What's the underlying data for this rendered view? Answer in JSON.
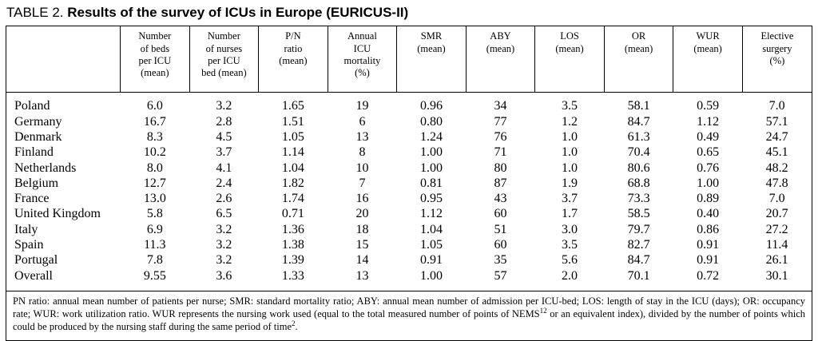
{
  "title": {
    "prefix": "TABLE 2.",
    "main": "Results of the survey of ICUs in Europe (EURICUS-II)"
  },
  "table": {
    "columns": [
      "",
      "Number\nof beds\nper ICU\n(mean)",
      "Number\nof nurses\nper ICU\nbed (mean)",
      "P/N\nratio\n(mean)",
      "Annual\nICU\nmortality\n(%)",
      "SMR\n(mean)",
      "ABY\n(mean)",
      "LOS\n(mean)",
      "OR\n(mean)",
      "WUR\n(mean)",
      "Elective\nsurgery\n(%)"
    ],
    "rows": [
      {
        "country": "Poland",
        "values": [
          "6.0",
          "3.2",
          "1.65",
          "19",
          "0.96",
          "34",
          "3.5",
          "58.1",
          "0.59",
          "7.0"
        ]
      },
      {
        "country": "Germany",
        "values": [
          "16.7",
          "2.8",
          "1.51",
          "6",
          "0.80",
          "77",
          "1.2",
          "84.7",
          "1.12",
          "57.1"
        ]
      },
      {
        "country": "Denmark",
        "values": [
          "8.3",
          "4.5",
          "1.05",
          "13",
          "1.24",
          "76",
          "1.0",
          "61.3",
          "0.49",
          "24.7"
        ]
      },
      {
        "country": "Finland",
        "values": [
          "10.2",
          "3.7",
          "1.14",
          "8",
          "1.00",
          "71",
          "1.0",
          "70.4",
          "0.65",
          "45.1"
        ]
      },
      {
        "country": "Netherlands",
        "values": [
          "8.0",
          "4.1",
          "1.04",
          "10",
          "1.00",
          "80",
          "1.0",
          "80.6",
          "0.76",
          "48.2"
        ]
      },
      {
        "country": "Belgium",
        "values": [
          "12.7",
          "2.4",
          "1.82",
          "7",
          "0.81",
          "87",
          "1.9",
          "68.8",
          "1.00",
          "47.8"
        ]
      },
      {
        "country": "France",
        "values": [
          "13.0",
          "2.6",
          "1.74",
          "16",
          "0.95",
          "43",
          "3.7",
          "73.3",
          "0.89",
          "7.0"
        ]
      },
      {
        "country": "United Kingdom",
        "values": [
          "5.8",
          "6.5",
          "0.71",
          "20",
          "1.12",
          "60",
          "1.7",
          "58.5",
          "0.40",
          "20.7"
        ]
      },
      {
        "country": "Italy",
        "values": [
          "6.9",
          "3.2",
          "1.36",
          "18",
          "1.04",
          "51",
          "3.0",
          "79.7",
          "0.86",
          "27.2"
        ]
      },
      {
        "country": "Spain",
        "values": [
          "11.3",
          "3.2",
          "1.38",
          "15",
          "1.05",
          "60",
          "3.5",
          "82.7",
          "0.91",
          "11.4"
        ]
      },
      {
        "country": "Portugal",
        "values": [
          "7.8",
          "3.2",
          "1.39",
          "14",
          "0.91",
          "35",
          "5.6",
          "84.7",
          "0.91",
          "26.1"
        ]
      },
      {
        "country": "Overall",
        "values": [
          "9.55",
          "3.6",
          "1.33",
          "13",
          "1.00",
          "57",
          "2.0",
          "70.1",
          "0.72",
          "30.1"
        ]
      }
    ]
  },
  "footnote": {
    "part1": "PN ratio: annual mean number of patients per nurse; SMR: standard mortality ratio; ABY: annual mean number of admission per ICU-bed; LOS: length of stay in the ICU (days); OR: occupancy rate; WUR: work utilization ratio. WUR represents the nursing work used (equal to the total measured number of points of NEMS",
    "sup1": "12",
    "part2": " or an equivalent index), divided by the number of points which could be produced by the nursing staff during the same period of time",
    "sup2": "2",
    "part3": "."
  },
  "chart_data": {
    "type": "table",
    "title": "TABLE 2. Results of the survey of ICUs in Europe (EURICUS-II)",
    "columns": [
      "Country",
      "Number of beds per ICU (mean)",
      "Number of nurses per ICU bed (mean)",
      "P/N ratio (mean)",
      "Annual ICU mortality (%)",
      "SMR (mean)",
      "ABY (mean)",
      "LOS (mean)",
      "OR (mean)",
      "WUR (mean)",
      "Elective surgery (%)"
    ],
    "rows": [
      [
        "Poland",
        6.0,
        3.2,
        1.65,
        19,
        0.96,
        34,
        3.5,
        58.1,
        0.59,
        7.0
      ],
      [
        "Germany",
        16.7,
        2.8,
        1.51,
        6,
        0.8,
        77,
        1.2,
        84.7,
        1.12,
        57.1
      ],
      [
        "Denmark",
        8.3,
        4.5,
        1.05,
        13,
        1.24,
        76,
        1.0,
        61.3,
        0.49,
        24.7
      ],
      [
        "Finland",
        10.2,
        3.7,
        1.14,
        8,
        1.0,
        71,
        1.0,
        70.4,
        0.65,
        45.1
      ],
      [
        "Netherlands",
        8.0,
        4.1,
        1.04,
        10,
        1.0,
        80,
        1.0,
        80.6,
        0.76,
        48.2
      ],
      [
        "Belgium",
        12.7,
        2.4,
        1.82,
        7,
        0.81,
        87,
        1.9,
        68.8,
        1.0,
        47.8
      ],
      [
        "France",
        13.0,
        2.6,
        1.74,
        16,
        0.95,
        43,
        3.7,
        73.3,
        0.89,
        7.0
      ],
      [
        "United Kingdom",
        5.8,
        6.5,
        0.71,
        20,
        1.12,
        60,
        1.7,
        58.5,
        0.4,
        20.7
      ],
      [
        "Italy",
        6.9,
        3.2,
        1.36,
        18,
        1.04,
        51,
        3.0,
        79.7,
        0.86,
        27.2
      ],
      [
        "Spain",
        11.3,
        3.2,
        1.38,
        15,
        1.05,
        60,
        3.5,
        82.7,
        0.91,
        11.4
      ],
      [
        "Portugal",
        7.8,
        3.2,
        1.39,
        14,
        0.91,
        35,
        5.6,
        84.7,
        0.91,
        26.1
      ],
      [
        "Overall",
        9.55,
        3.6,
        1.33,
        13,
        1.0,
        57,
        2.0,
        70.1,
        0.72,
        30.1
      ]
    ]
  }
}
